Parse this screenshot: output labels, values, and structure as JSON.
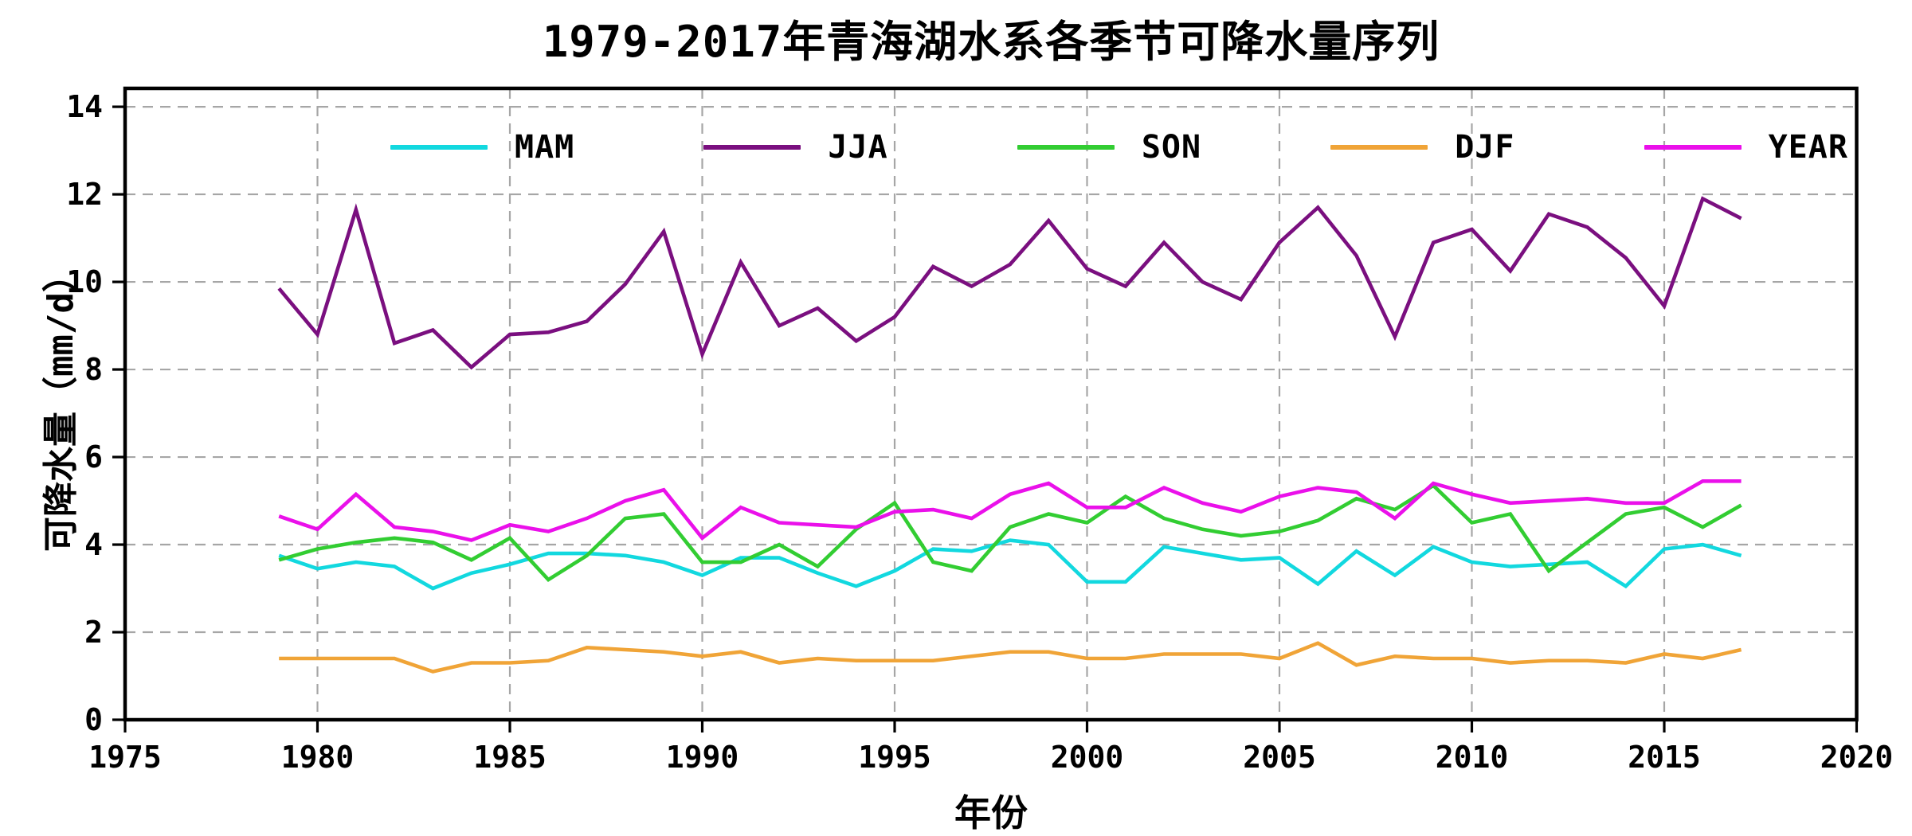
{
  "figure": {
    "background": "#ffffff",
    "border_color": "#000000",
    "grid_color": "#a6a6a6"
  },
  "chart_data": {
    "type": "line",
    "title": "1979-2017年青海湖水系各季节可降水量序列",
    "xlabel": "年份",
    "ylabel": "可降水量（mm/d）",
    "x": [
      1979,
      1980,
      1981,
      1982,
      1983,
      1984,
      1985,
      1986,
      1987,
      1988,
      1989,
      1990,
      1991,
      1992,
      1993,
      1994,
      1995,
      1996,
      1997,
      1998,
      1999,
      2000,
      2001,
      2002,
      2003,
      2004,
      2005,
      2006,
      2007,
      2008,
      2009,
      2010,
      2011,
      2012,
      2013,
      2014,
      2015,
      2016,
      2017
    ],
    "xlim": [
      1975,
      2020
    ],
    "ylim": [
      0,
      14.42
    ],
    "xticks": [
      1975,
      1980,
      1985,
      1990,
      1995,
      2000,
      2005,
      2010,
      2015,
      2020
    ],
    "yticks": [
      0,
      2,
      4,
      6,
      8,
      10,
      12,
      14
    ],
    "grid": true,
    "grid_style": "dashed",
    "legend_position": "upper center, horizontal, no frame",
    "series": [
      {
        "name": "MAM",
        "color": "#12D8DF",
        "values": [
          3.75,
          3.45,
          3.6,
          3.5,
          3.0,
          3.35,
          3.55,
          3.8,
          3.8,
          3.75,
          3.6,
          3.3,
          3.7,
          3.7,
          3.35,
          3.05,
          3.4,
          3.9,
          3.85,
          4.1,
          4.0,
          3.15,
          3.15,
          3.95,
          3.8,
          3.65,
          3.7,
          3.1,
          3.85,
          3.3,
          3.95,
          3.6,
          3.5,
          3.55,
          3.6,
          3.05,
          3.9,
          4.0,
          3.75
        ]
      },
      {
        "name": "JJA",
        "color": "#7A0F7F",
        "values": [
          9.85,
          8.8,
          11.65,
          8.6,
          8.9,
          8.05,
          8.8,
          8.85,
          9.1,
          9.95,
          11.15,
          8.35,
          10.45,
          9.0,
          9.4,
          8.65,
          9.2,
          10.35,
          9.9,
          10.4,
          11.4,
          10.3,
          9.9,
          10.9,
          10.0,
          9.6,
          10.9,
          11.7,
          10.6,
          8.75,
          10.9,
          11.2,
          10.25,
          11.55,
          11.25,
          10.55,
          9.45,
          11.9,
          11.45
        ]
      },
      {
        "name": "SON",
        "color": "#32CD32",
        "values": [
          3.65,
          3.9,
          4.05,
          4.15,
          4.05,
          3.65,
          4.15,
          3.2,
          3.75,
          4.6,
          4.7,
          3.6,
          3.6,
          4.0,
          3.5,
          4.35,
          4.95,
          3.6,
          3.4,
          4.4,
          4.7,
          4.5,
          5.1,
          4.6,
          4.35,
          4.2,
          4.3,
          4.55,
          5.05,
          4.8,
          5.35,
          4.5,
          4.7,
          3.4,
          4.05,
          4.7,
          4.85,
          4.4,
          4.9
        ]
      },
      {
        "name": "DJF",
        "color": "#F0A437",
        "values": [
          1.4,
          1.4,
          1.4,
          1.4,
          1.1,
          1.3,
          1.3,
          1.35,
          1.65,
          1.6,
          1.55,
          1.45,
          1.55,
          1.3,
          1.4,
          1.35,
          1.35,
          1.35,
          1.45,
          1.55,
          1.55,
          1.4,
          1.4,
          1.5,
          1.5,
          1.5,
          1.4,
          1.75,
          1.25,
          1.45,
          1.4,
          1.4,
          1.3,
          1.35,
          1.35,
          1.3,
          1.5,
          1.4,
          1.6
        ]
      },
      {
        "name": "YEAR",
        "color": "#EA10EA",
        "values": [
          4.65,
          4.35,
          5.15,
          4.4,
          4.3,
          4.1,
          4.45,
          4.3,
          4.6,
          5.0,
          5.25,
          4.15,
          4.85,
          4.5,
          4.45,
          4.4,
          4.75,
          4.8,
          4.6,
          5.15,
          5.4,
          4.85,
          4.85,
          5.3,
          4.95,
          4.75,
          5.1,
          5.3,
          5.2,
          4.6,
          5.4,
          5.15,
          4.95,
          5.0,
          5.05,
          4.95,
          4.95,
          5.45,
          5.45
        ]
      }
    ]
  }
}
